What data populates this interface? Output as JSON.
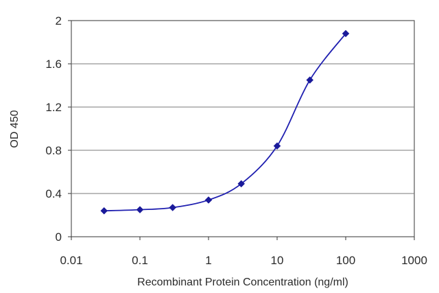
{
  "chart_data": {
    "type": "line",
    "title": "",
    "xlabel": "Recombinant Protein Concentration (ng/ml)",
    "ylabel": "OD 450",
    "xscale": "log",
    "xlim": [
      0.01,
      1000
    ],
    "ylim": [
      0,
      2
    ],
    "xticks": [
      "0.01",
      "0.1",
      "1",
      "10",
      "100",
      "1000"
    ],
    "xtick_values": [
      0.01,
      0.1,
      1,
      10,
      100,
      1000
    ],
    "yticks": [
      "0",
      "0.4",
      "0.8",
      "1.2",
      "1.6",
      "2"
    ],
    "ytick_values": [
      0,
      0.4,
      0.8,
      1.2,
      1.6,
      2
    ],
    "grid": "horizontal",
    "legend": "none",
    "series": [
      {
        "color": "#1f1fb0",
        "marker": "diamond",
        "x": [
          0.03,
          0.1,
          0.3,
          1,
          3,
          10,
          30,
          100
        ],
        "y": [
          0.24,
          0.25,
          0.27,
          0.34,
          0.49,
          0.84,
          1.45,
          1.88
        ]
      }
    ]
  }
}
